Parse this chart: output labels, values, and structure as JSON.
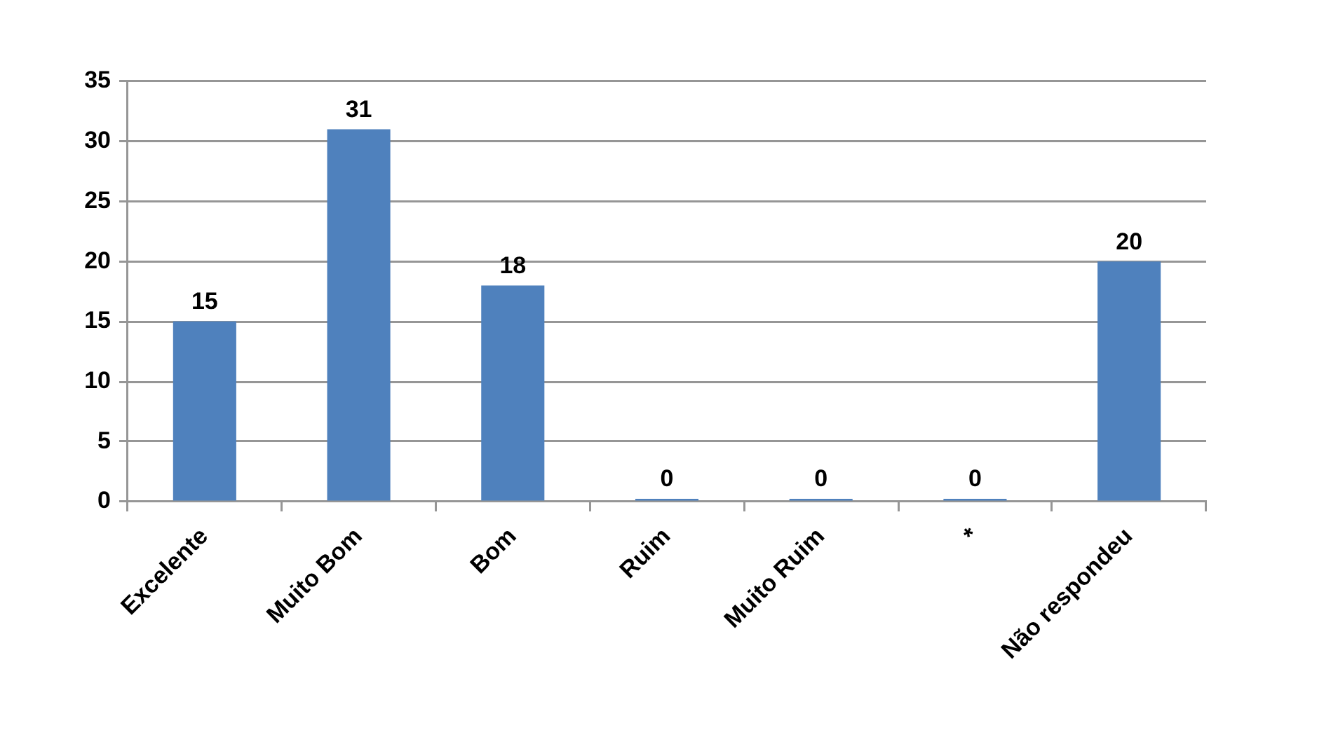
{
  "chart_data": {
    "type": "bar",
    "categories": [
      "Excelente",
      "Muito Bom",
      "Bom",
      "Ruim",
      "Muito Ruim",
      "*",
      "Não respondeu"
    ],
    "values": [
      15,
      31,
      18,
      0,
      0,
      0,
      20
    ],
    "color": "#4f81bd",
    "ylim": [
      0,
      35
    ],
    "yticks": [
      0,
      5,
      10,
      15,
      20,
      25,
      30,
      35
    ],
    "grid": "y",
    "data_labels": true
  }
}
